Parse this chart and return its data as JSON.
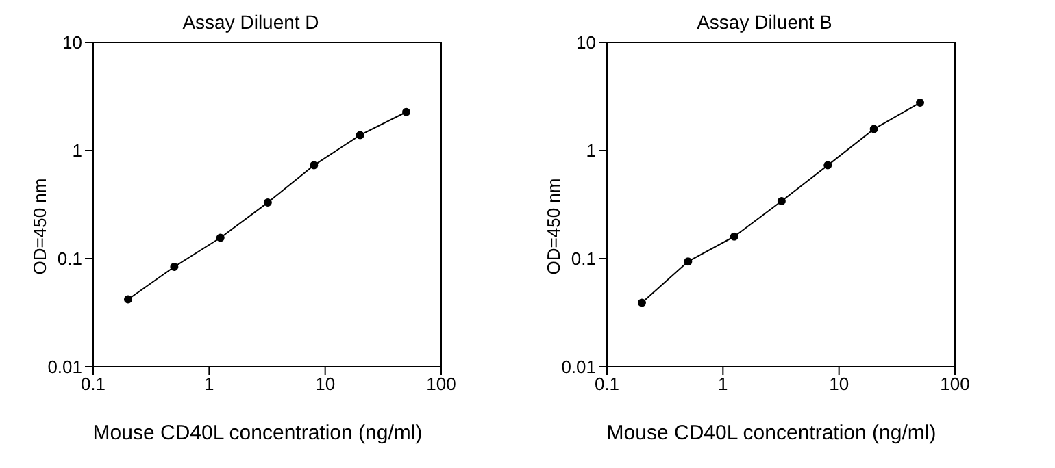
{
  "chart_data": [
    {
      "type": "line",
      "title": "Assay Diluent D",
      "xlabel": "Mouse CD40L concentration (ng/ml)",
      "ylabel": "OD=450 nm",
      "log": "xy",
      "x": [
        0.2,
        0.5,
        1.25,
        3.2,
        8,
        20,
        50
      ],
      "series": [
        {
          "color": "#000000",
          "values": [
            0.042,
            0.084,
            0.156,
            0.33,
            0.73,
            1.39,
            2.27
          ]
        }
      ],
      "xlim": [
        0.1,
        100
      ],
      "xticks": [
        0.1,
        1,
        10,
        100
      ],
      "ylim": [
        0.01,
        10
      ],
      "yticks": [
        0.01,
        0.1,
        1,
        10
      ],
      "grid": false,
      "legend": false,
      "marker": "circle",
      "line_style": "solid"
    },
    {
      "type": "line",
      "title": "Assay Diluent B",
      "xlabel": "Mouse CD40L concentration (ng/ml)",
      "ylabel": "OD=450 nm",
      "log": "xy",
      "x": [
        0.2,
        0.5,
        1.25,
        3.2,
        8,
        20,
        50
      ],
      "series": [
        {
          "color": "#000000",
          "values": [
            0.039,
            0.094,
            0.16,
            0.34,
            0.73,
            1.58,
            2.77
          ]
        }
      ],
      "xlim": [
        0.1,
        100
      ],
      "xticks": [
        0.1,
        1,
        10,
        100
      ],
      "ylim": [
        0.01,
        10
      ],
      "yticks": [
        0.01,
        0.1,
        1,
        10
      ],
      "grid": false,
      "legend": false,
      "marker": "circle",
      "line_style": "solid"
    }
  ]
}
